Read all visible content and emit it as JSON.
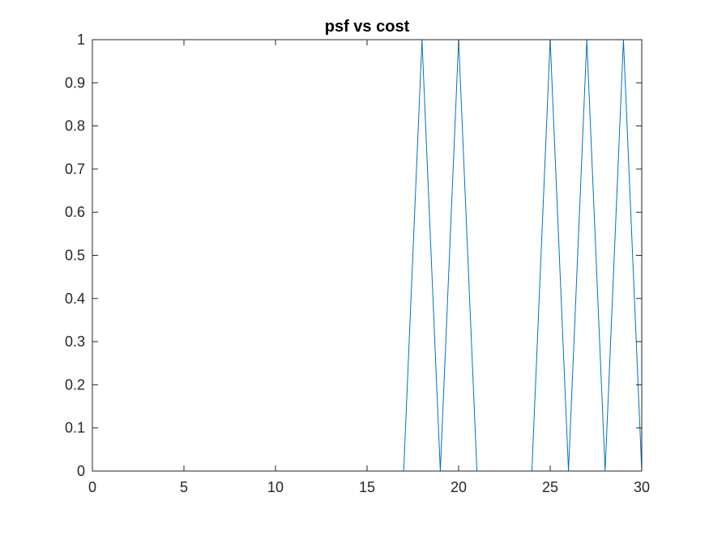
{
  "chart_data": {
    "type": "line",
    "title": "psf vs cost",
    "xlabel": "",
    "ylabel": "",
    "xlim": [
      0,
      30
    ],
    "ylim": [
      0,
      1
    ],
    "xticks": [
      0,
      5,
      10,
      15,
      20,
      25,
      30
    ],
    "yticks": [
      0,
      0.1,
      0.2,
      0.3,
      0.4,
      0.5,
      0.6,
      0.7,
      0.8,
      0.9,
      1
    ],
    "xtick_labels": [
      "0",
      "5",
      "10",
      "15",
      "20",
      "25",
      "30"
    ],
    "ytick_labels": [
      "0",
      "0.1",
      "0.2",
      "0.3",
      "0.4",
      "0.5",
      "0.6",
      "0.7",
      "0.8",
      "0.9",
      "1"
    ],
    "grid": false,
    "series": [
      {
        "color": "#0072BD",
        "x": [
          2,
          3,
          4,
          5,
          6,
          7,
          8,
          9,
          10,
          11,
          12,
          13,
          14,
          15,
          16,
          17,
          18,
          19,
          20,
          21,
          22,
          23,
          24,
          25,
          26,
          27,
          28,
          29,
          30
        ],
        "y": [
          0,
          0,
          0,
          0,
          0,
          0,
          0,
          0,
          0,
          0,
          0,
          0,
          0,
          0,
          0,
          0,
          1,
          0,
          1,
          0,
          0,
          0,
          0,
          1,
          0,
          1,
          0,
          1,
          0
        ]
      }
    ]
  }
}
